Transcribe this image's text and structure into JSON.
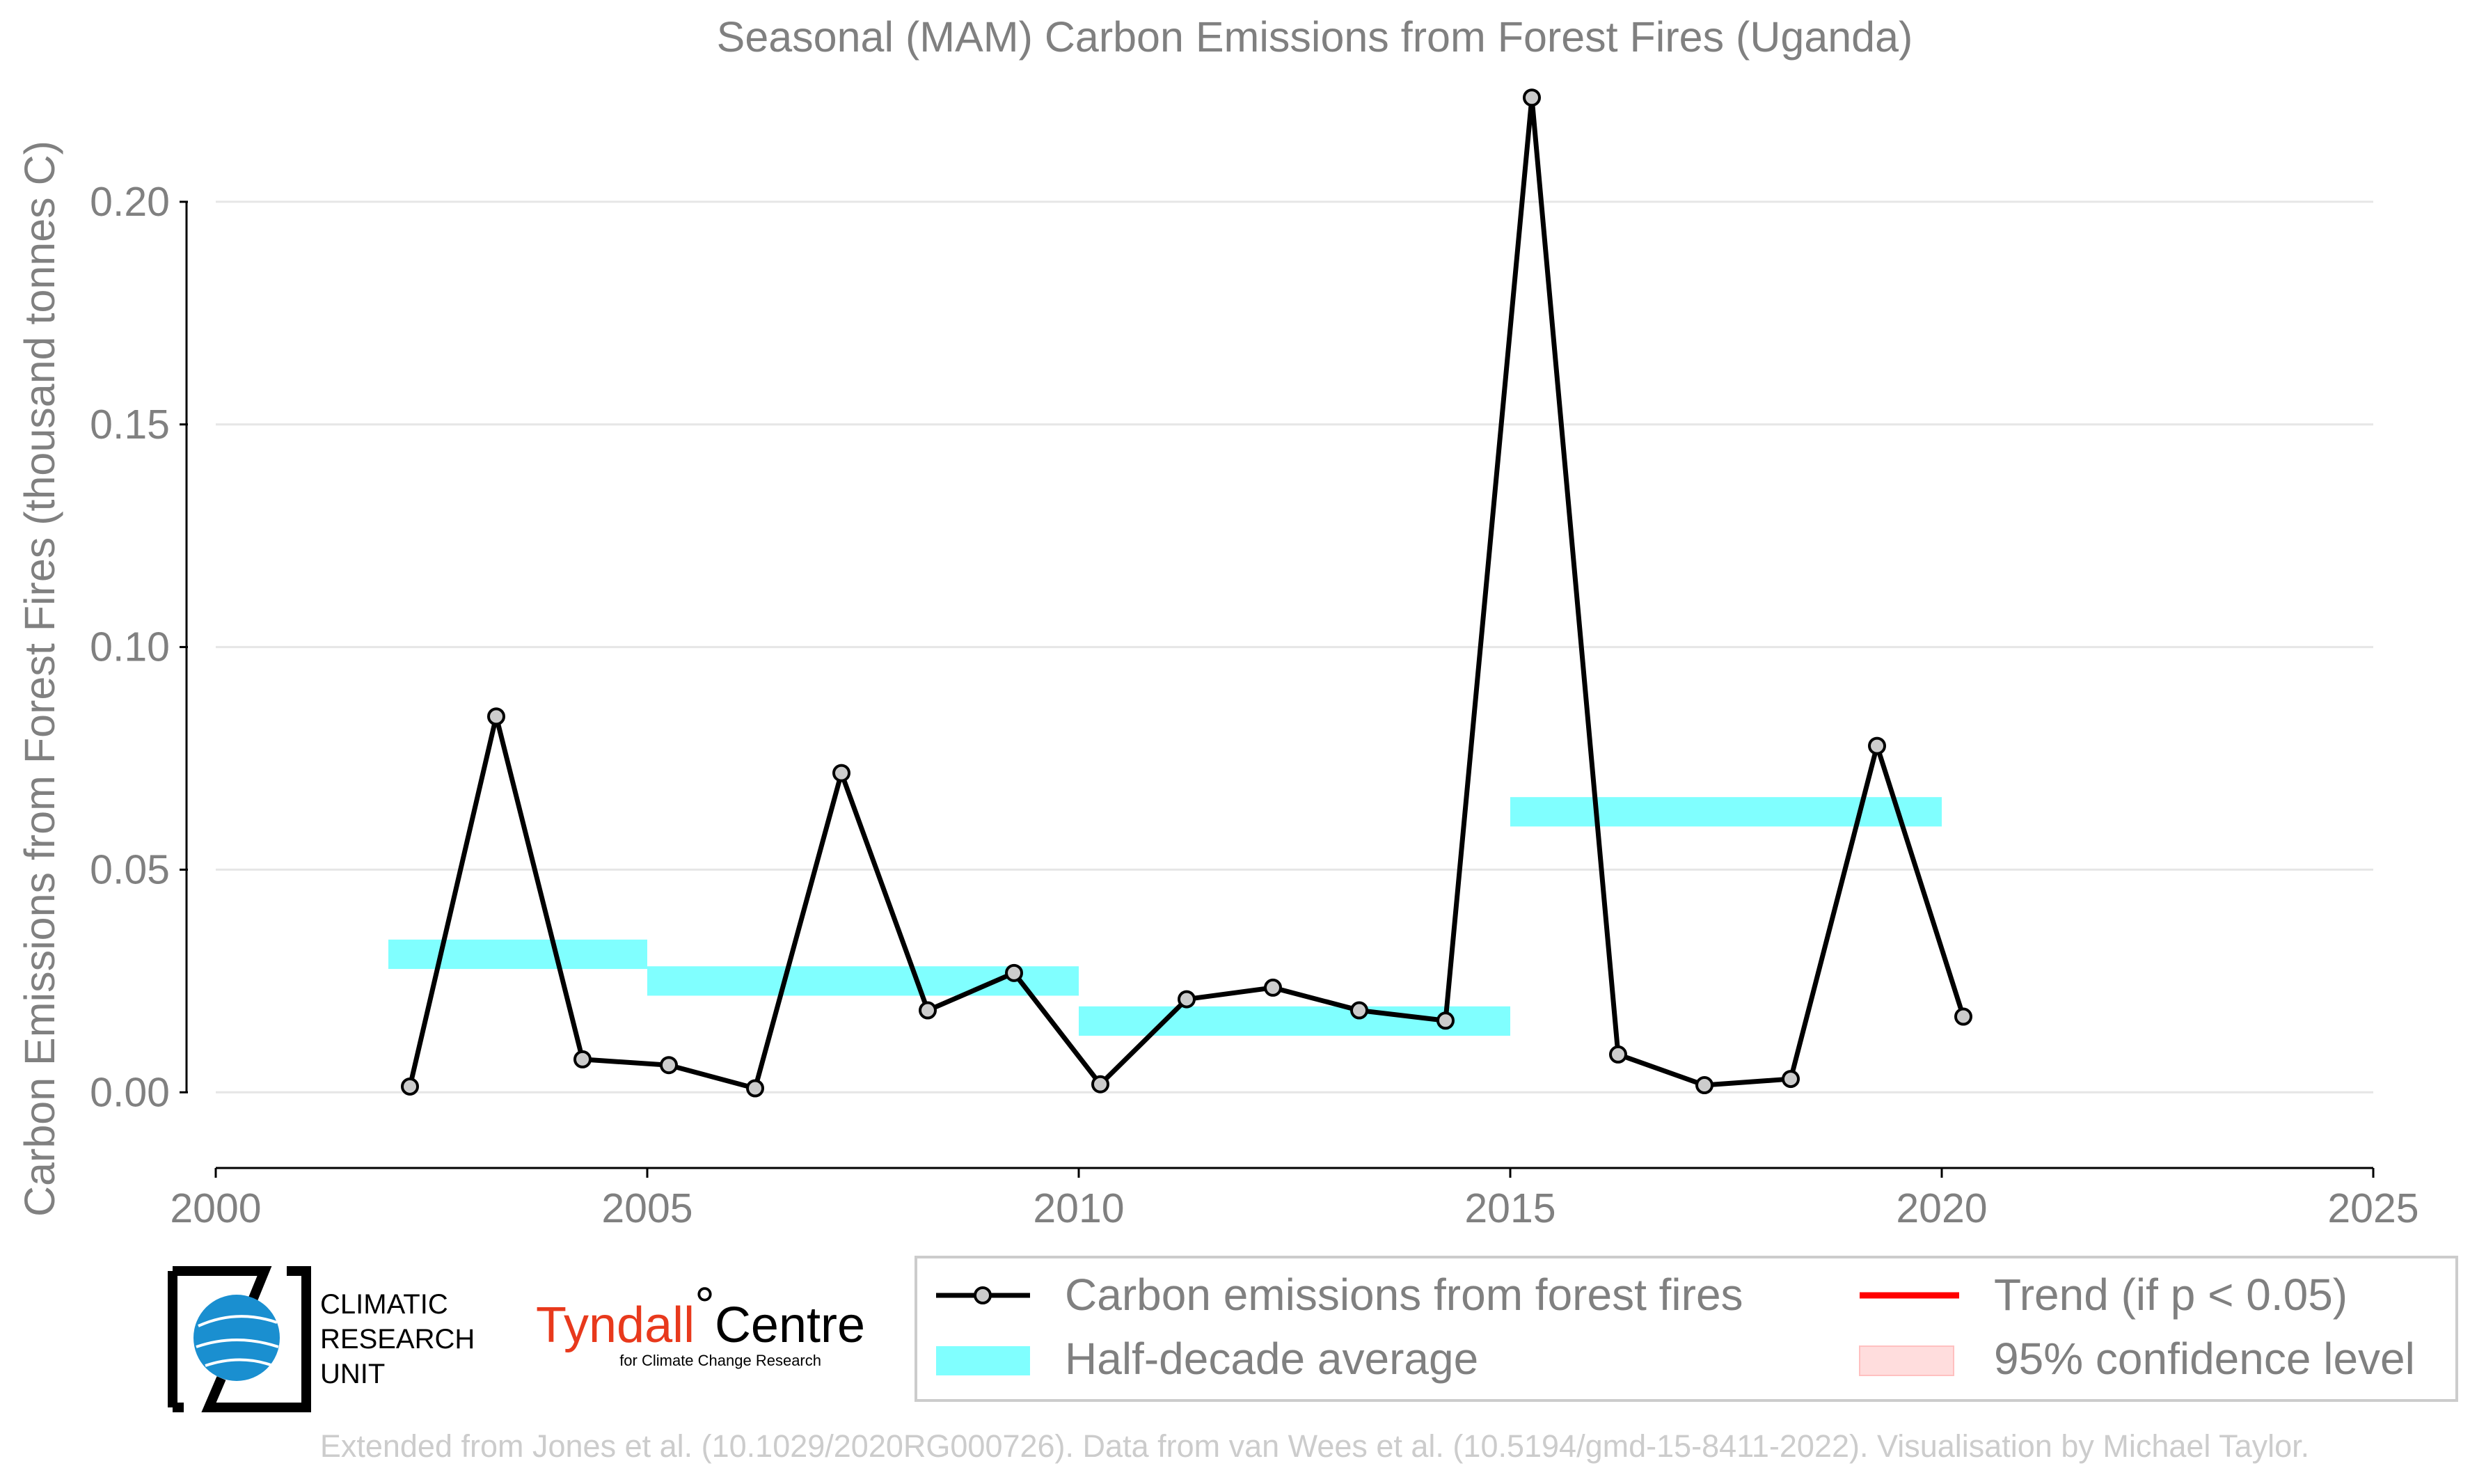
{
  "chart_data": {
    "type": "line",
    "title": "Seasonal (MAM) Carbon Emissions from Forest Fires (Uganda)",
    "xlabel": "",
    "ylabel": "Carbon Emissions from Forest Fires (thousand tonnes C)",
    "xlim": [
      2000,
      2025
    ],
    "ylim": [
      -0.017,
      0.225
    ],
    "x_ticks": [
      "2000",
      "2005",
      "2010",
      "2015",
      "2020",
      "2025"
    ],
    "y_ticks": [
      "0.00",
      "0.05",
      "0.10",
      "0.15",
      "0.20"
    ],
    "grid": "horizontal",
    "series": [
      {
        "name": "Carbon emissions from forest fires",
        "color": "#000000",
        "marker_fill": "#cccccc",
        "x": [
          2002.25,
          2003.25,
          2004.25,
          2005.25,
          2006.25,
          2007.25,
          2008.25,
          2009.25,
          2010.25,
          2011.25,
          2012.25,
          2013.25,
          2014.25,
          2015.25,
          2016.25,
          2017.25,
          2018.25,
          2019.25,
          2020.25
        ],
        "values": [
          0.0013,
          0.0844,
          0.0074,
          0.0061,
          0.0009,
          0.0717,
          0.0184,
          0.0268,
          0.0018,
          0.0209,
          0.0235,
          0.0184,
          0.0161,
          0.2234,
          0.0085,
          0.0016,
          0.003,
          0.0778,
          0.017
        ]
      }
    ],
    "half_decade_average": {
      "name": "Half-decade average",
      "color": "#80ffff",
      "segments": [
        {
          "x_start": 2002,
          "x_end": 2005,
          "value": 0.031
        },
        {
          "x_start": 2005,
          "x_end": 2010,
          "value": 0.025
        },
        {
          "x_start": 2010,
          "x_end": 2015,
          "value": 0.016
        },
        {
          "x_start": 2015,
          "x_end": 2020,
          "value": 0.063
        }
      ]
    },
    "legend": {
      "placement": "bottom-right",
      "entries": [
        {
          "label": "Carbon emissions from forest fires",
          "kind": "line-marker",
          "color": "#000000"
        },
        {
          "label": "Trend (if p < 0.05)",
          "kind": "line",
          "color": "#ff0000"
        },
        {
          "label": "Half-decade average",
          "kind": "band",
          "color": "#80ffff"
        },
        {
          "label": "95% confidence level",
          "kind": "band",
          "color": "#ffdddd"
        }
      ]
    }
  },
  "logos": {
    "cru_lines": [
      "CLIMATIC",
      "RESEARCH",
      "UNIT"
    ],
    "tyndall_main": "Tyndall",
    "tyndall_degree": "°",
    "tyndall_centre": "Centre",
    "tyndall_sub": "for Climate Change Research",
    "cru_color": "#1a8fd0"
  },
  "credit": "Extended from Jones et al. (10.1029/2020RG000726). Data from van Wees et al. (10.5194/gmd-15-8411-2022). Visualisation by Michael Taylor."
}
